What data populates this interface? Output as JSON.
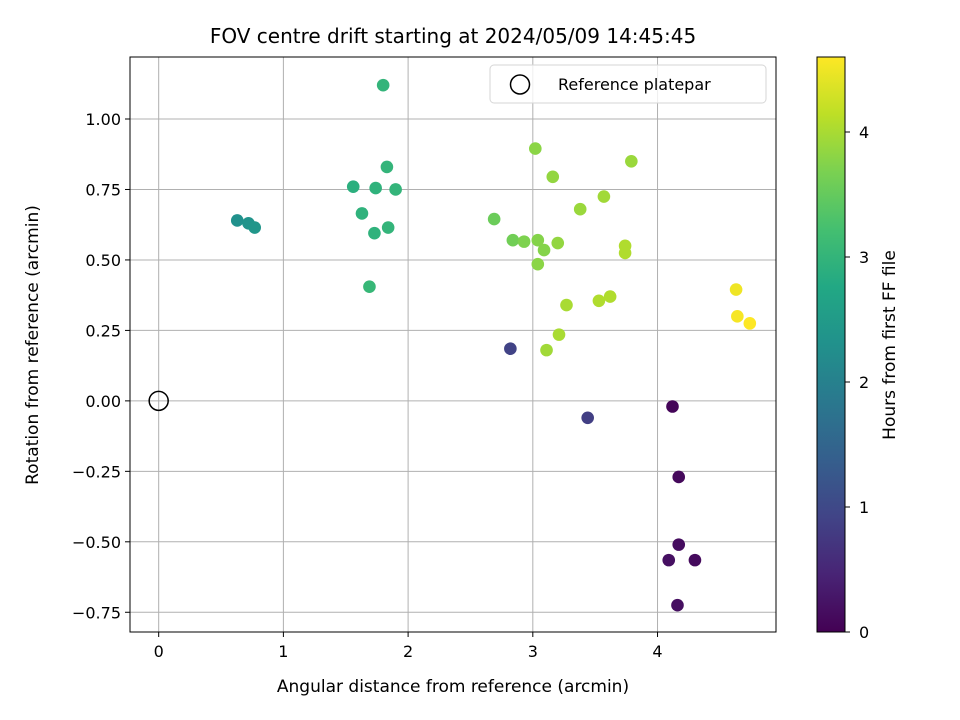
{
  "chart_data": {
    "type": "scatter",
    "title": "FOV centre drift starting at 2024/05/09 14:45:45",
    "xlabel": "Angular distance from reference (arcmin)",
    "ylabel": "Rotation from reference (arcmin)",
    "xlim": [
      -0.23,
      4.95
    ],
    "ylim": [
      -0.82,
      1.22
    ],
    "xticks": [
      0,
      1,
      2,
      3,
      4
    ],
    "xtick_labels": [
      "0",
      "1",
      "2",
      "3",
      "4"
    ],
    "yticks": [
      -0.75,
      -0.5,
      -0.25,
      0.0,
      0.25,
      0.5,
      0.75,
      1.0
    ],
    "ytick_labels": [
      "−0.75",
      "−0.50",
      "−0.25",
      "0.00",
      "0.25",
      "0.50",
      "0.75",
      "1.00"
    ],
    "grid": true,
    "colormap": "viridis",
    "colorbar": {
      "label": "Hours from first FF file",
      "range": [
        0,
        4.6
      ],
      "ticks": [
        0,
        1,
        2,
        3,
        4
      ],
      "tick_labels": [
        "0",
        "1",
        "2",
        "3",
        "4"
      ]
    },
    "legend": {
      "position": "top-right",
      "entries": [
        "Reference platepar"
      ]
    },
    "reference_point": {
      "x": 0.0,
      "y": 0.0,
      "marker": "open-circle",
      "color": "#000000"
    },
    "points": [
      {
        "x": 4.12,
        "y": -0.02,
        "hours": 0.05
      },
      {
        "x": 4.17,
        "y": -0.27,
        "hours": 0.1
      },
      {
        "x": 4.17,
        "y": -0.51,
        "hours": 0.15
      },
      {
        "x": 4.09,
        "y": -0.565,
        "hours": 0.2
      },
      {
        "x": 4.3,
        "y": -0.565,
        "hours": 0.12
      },
      {
        "x": 4.16,
        "y": -0.725,
        "hours": 0.18
      },
      {
        "x": 3.44,
        "y": -0.06,
        "hours": 0.85
      },
      {
        "x": 2.82,
        "y": 0.185,
        "hours": 0.9
      },
      {
        "x": 0.63,
        "y": 0.64,
        "hours": 2.3
      },
      {
        "x": 0.72,
        "y": 0.63,
        "hours": 2.35
      },
      {
        "x": 0.77,
        "y": 0.615,
        "hours": 2.4
      },
      {
        "x": 1.8,
        "y": 1.12,
        "hours": 3.0
      },
      {
        "x": 1.56,
        "y": 0.76,
        "hours": 2.9
      },
      {
        "x": 1.74,
        "y": 0.755,
        "hours": 2.95
      },
      {
        "x": 1.83,
        "y": 0.83,
        "hours": 3.0
      },
      {
        "x": 1.9,
        "y": 0.75,
        "hours": 3.0
      },
      {
        "x": 1.63,
        "y": 0.665,
        "hours": 2.95
      },
      {
        "x": 1.73,
        "y": 0.595,
        "hours": 2.95
      },
      {
        "x": 1.84,
        "y": 0.615,
        "hours": 3.0
      },
      {
        "x": 1.69,
        "y": 0.405,
        "hours": 3.05
      },
      {
        "x": 2.69,
        "y": 0.645,
        "hours": 3.55
      },
      {
        "x": 2.84,
        "y": 0.57,
        "hours": 3.6
      },
      {
        "x": 2.93,
        "y": 0.565,
        "hours": 3.7
      },
      {
        "x": 3.02,
        "y": 0.895,
        "hours": 3.8
      },
      {
        "x": 3.04,
        "y": 0.57,
        "hours": 3.75
      },
      {
        "x": 3.09,
        "y": 0.535,
        "hours": 3.75
      },
      {
        "x": 3.04,
        "y": 0.485,
        "hours": 3.8
      },
      {
        "x": 3.16,
        "y": 0.795,
        "hours": 3.85
      },
      {
        "x": 3.2,
        "y": 0.56,
        "hours": 3.85
      },
      {
        "x": 3.38,
        "y": 0.68,
        "hours": 3.9
      },
      {
        "x": 3.57,
        "y": 0.725,
        "hours": 3.95
      },
      {
        "x": 3.79,
        "y": 0.85,
        "hours": 3.9
      },
      {
        "x": 3.74,
        "y": 0.55,
        "hours": 4.05
      },
      {
        "x": 3.74,
        "y": 0.525,
        "hours": 4.05
      },
      {
        "x": 3.27,
        "y": 0.34,
        "hours": 4.0
      },
      {
        "x": 3.53,
        "y": 0.355,
        "hours": 4.05
      },
      {
        "x": 3.62,
        "y": 0.37,
        "hours": 4.05
      },
      {
        "x": 3.21,
        "y": 0.235,
        "hours": 4.0
      },
      {
        "x": 3.11,
        "y": 0.18,
        "hours": 3.95
      },
      {
        "x": 4.63,
        "y": 0.395,
        "hours": 4.5
      },
      {
        "x": 4.64,
        "y": 0.3,
        "hours": 4.55
      },
      {
        "x": 4.74,
        "y": 0.275,
        "hours": 4.6
      }
    ]
  }
}
